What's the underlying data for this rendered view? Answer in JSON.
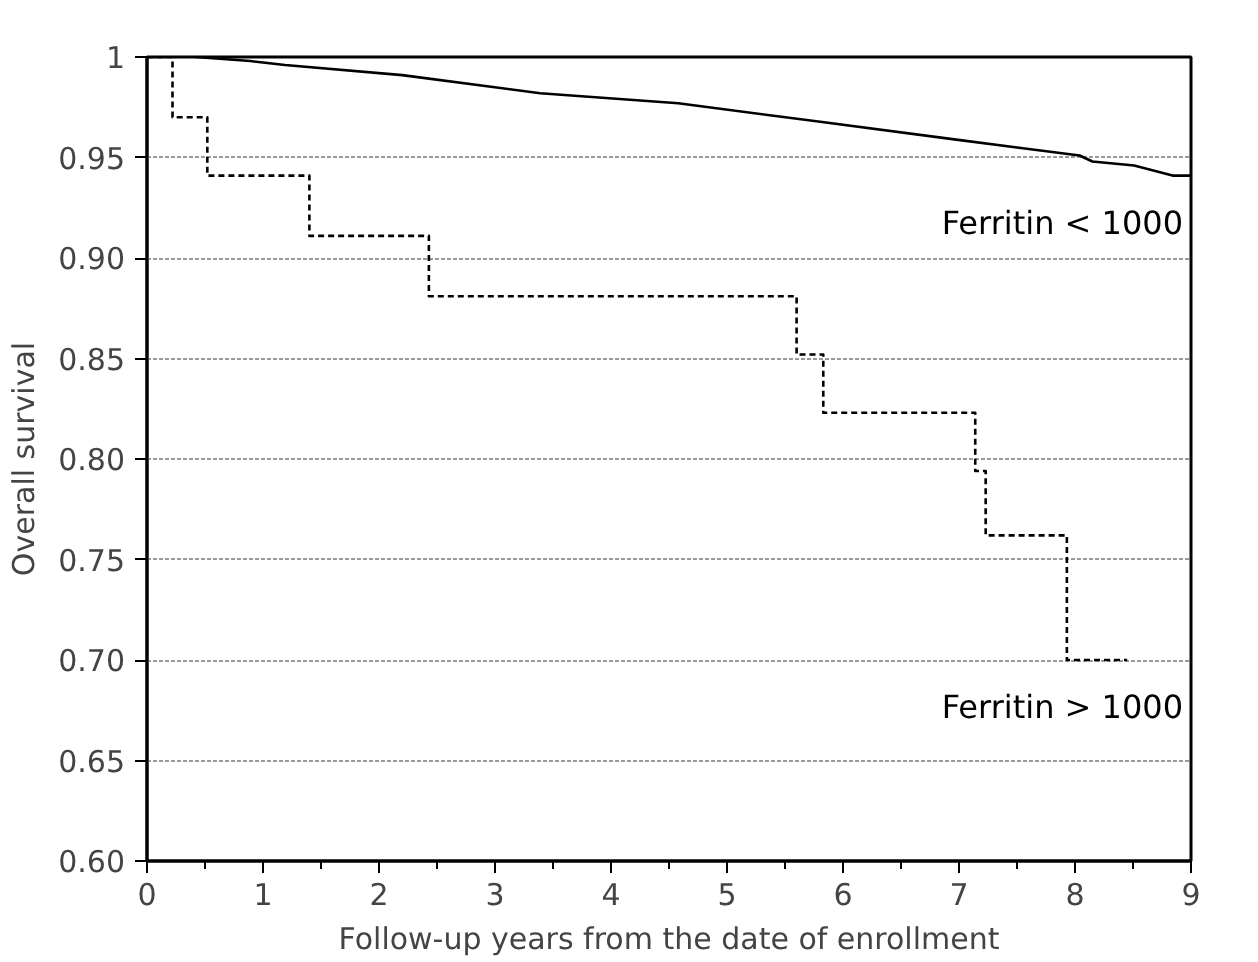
{
  "chart_data": {
    "type": "step",
    "xlabel": "Follow-up years from the date of enrollment",
    "ylabel": "Overall survival",
    "xlim": [
      0,
      9
    ],
    "ylim": [
      0.6,
      1
    ],
    "xticks": [
      0,
      1,
      2,
      3,
      4,
      5,
      6,
      7,
      8,
      9
    ],
    "yticks": [
      {
        "value": 0.6,
        "label": "0.60"
      },
      0.65,
      {
        "value": 0.7,
        "label": "0.70"
      },
      0.75,
      {
        "value": 0.8,
        "label": "0.80"
      },
      0.85,
      {
        "value": 0.9,
        "label": "0.90"
      },
      0.95,
      1
    ],
    "grid": "y",
    "series": [
      {
        "name": "Ferritin < 1000",
        "color": "#000000",
        "type": "line",
        "line_style": "solid",
        "x": [
          0.42,
          0.89,
          1.19,
          2.2,
          3.39,
          4.58,
          5.77,
          6.96,
          7.5,
          8.04,
          8.15,
          8.51,
          8.84,
          9.0
        ],
        "values": [
          1.0,
          0.998,
          0.996,
          0.991,
          0.982,
          0.977,
          0.968,
          0.959,
          0.955,
          0.951,
          0.948,
          0.946,
          0.941,
          0.941
        ]
      },
      {
        "name": "Ferritin > 1000",
        "color": "#000000",
        "line_style": "dotted",
        "x": [
          0,
          0.22,
          0.52,
          1.4,
          2.43,
          5.6,
          5.83,
          7.14,
          7.23,
          7.93,
          8.45
        ],
        "values": [
          1.0,
          0.97,
          0.941,
          0.911,
          0.881,
          0.852,
          0.823,
          0.794,
          0.762,
          0.7,
          0.7
        ]
      }
    ]
  }
}
